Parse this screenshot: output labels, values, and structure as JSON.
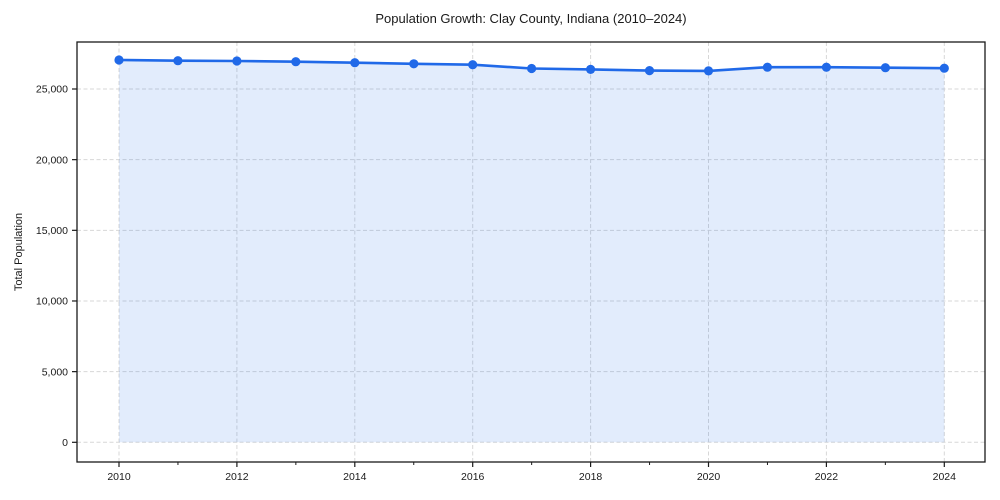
{
  "figure": {
    "title": "Population Growth: Clay County, Indiana (2010–2024)",
    "ylabel": "Total Population"
  },
  "chart_data": {
    "type": "line",
    "title": "Population Growth: Clay County, Indiana (2010–2024)",
    "xlabel": "",
    "ylabel": "Total Population",
    "x": [
      2010,
      2011,
      2012,
      2013,
      2014,
      2015,
      2016,
      2017,
      2018,
      2019,
      2020,
      2021,
      2022,
      2023,
      2024
    ],
    "series": [
      {
        "name": "Total Population",
        "values": [
          27050,
          27000,
          26980,
          26930,
          26860,
          26780,
          26720,
          26450,
          26390,
          26300,
          26280,
          26540,
          26540,
          26510,
          26470
        ]
      }
    ],
    "xticks": [
      2010,
      2012,
      2014,
      2016,
      2018,
      2020,
      2022,
      2024
    ],
    "xticks_minor": [
      2011,
      2013,
      2015,
      2017,
      2019,
      2021,
      2023
    ],
    "yticks": [
      0,
      5000,
      10000,
      15000,
      20000,
      25000
    ],
    "ytick_labels": [
      "0",
      "5,000",
      "10,000",
      "15,000",
      "20,000",
      "25,000"
    ],
    "xlim": [
      2009.3,
      2024.7
    ],
    "ylim": [
      -1400,
      28320
    ],
    "grid": true,
    "grid_style": "dashed",
    "legend_position": "none",
    "fill_to_zero": true,
    "line_color": "#2069e8",
    "fill_color": "rgba(32,105,232,0.13)",
    "grid_color": "#d7d7d7",
    "spine_color": "#1a1a1a",
    "marker": "circle"
  }
}
